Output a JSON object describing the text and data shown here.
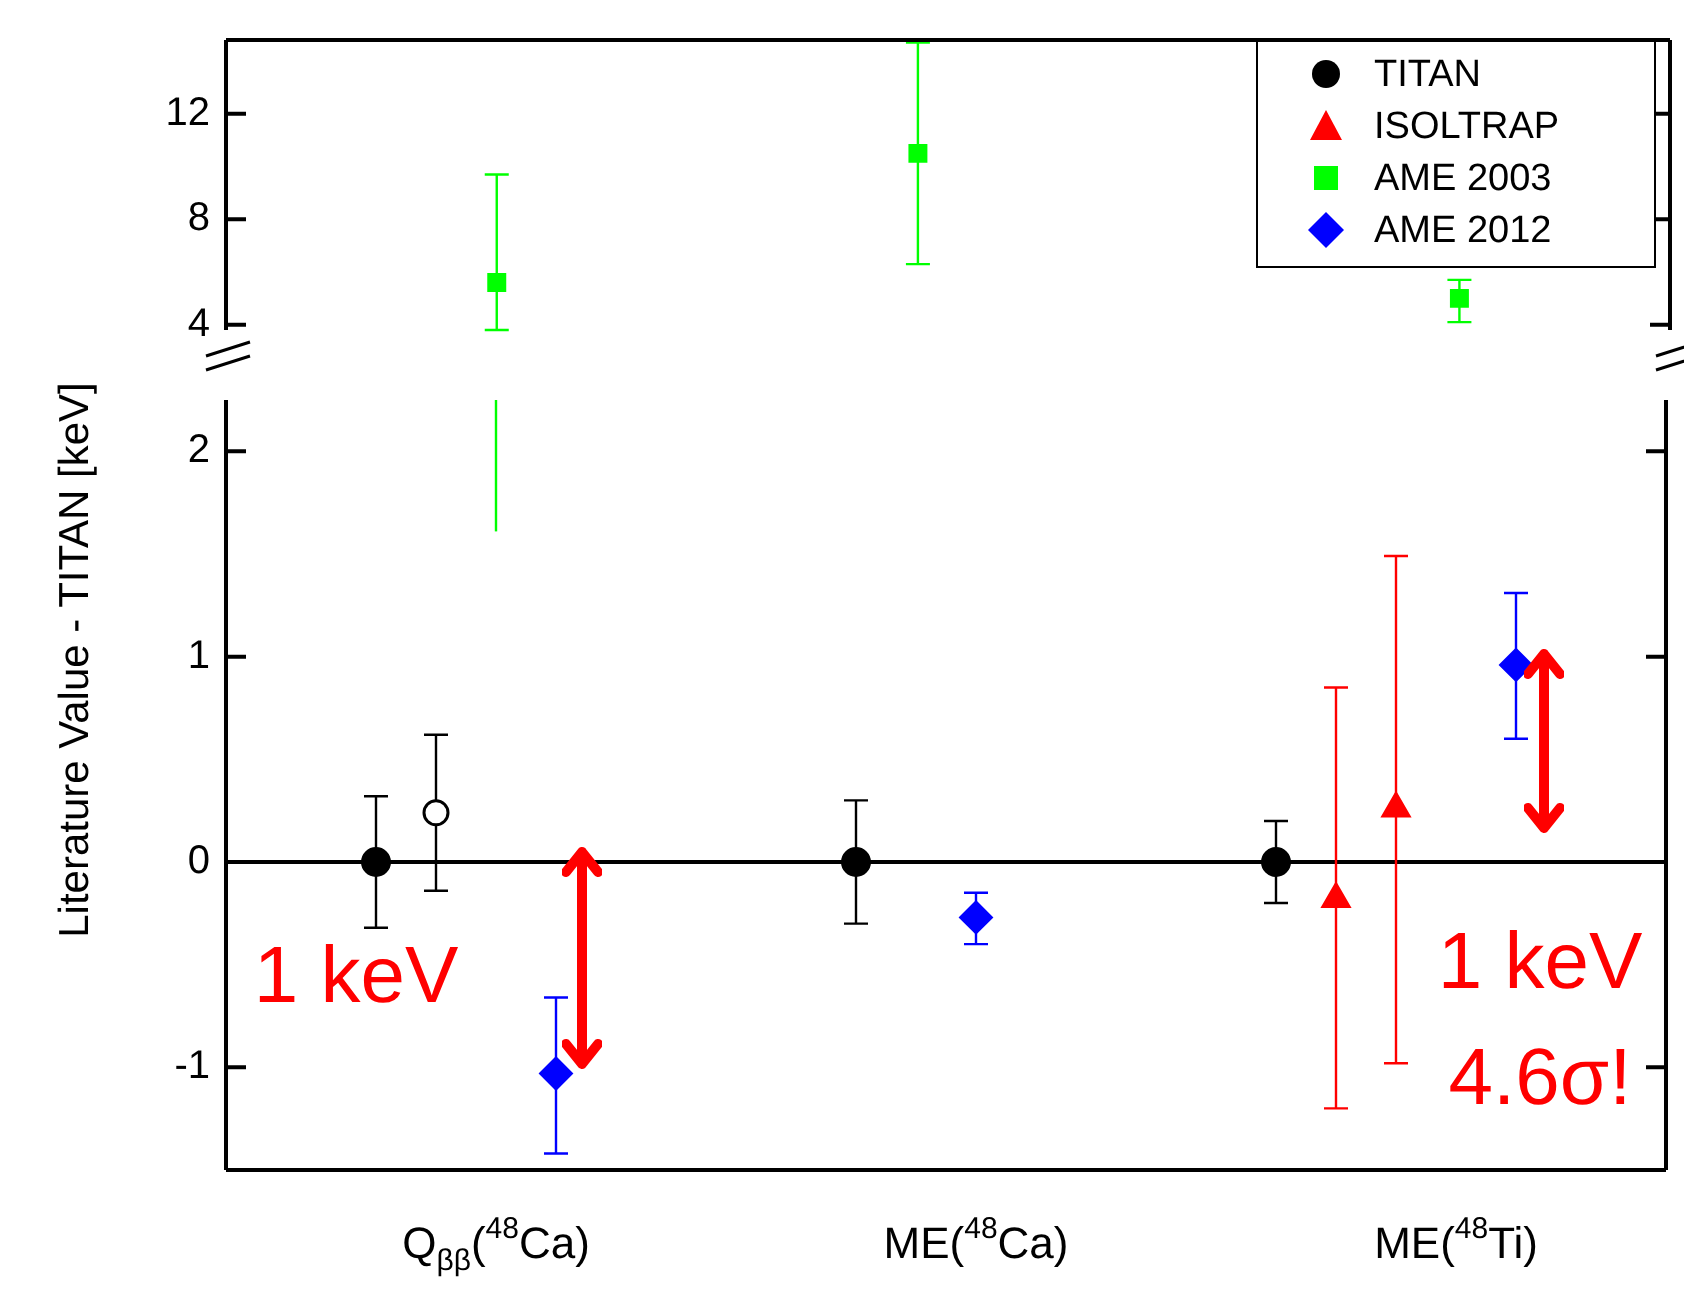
{
  "chart_data": [
    {
      "type": "scatter",
      "ylim": [
        3.8,
        14.8
      ],
      "yticks": [
        4,
        8,
        12
      ],
      "tick_labels": "y",
      "legend": "top right",
      "series": [
        {
          "name": "AME 2003",
          "color": "#00ff00",
          "marker": "square",
          "values": [
            null,
            null,
            null,
            null,
            5.6,
            null,
            null,
            null,
            null,
            null,
            null,
            10.5,
            null,
            null,
            null,
            null,
            null,
            null,
            null,
            null,
            5.0,
            null,
            null,
            null
          ],
          "errors": [
            null,
            null,
            null,
            null,
            [
              3.8,
              9.7
            ],
            null,
            null,
            null,
            null,
            null,
            null,
            [
              6.3,
              14.7
            ],
            null,
            null,
            null,
            null,
            null,
            null,
            null,
            null,
            [
              4.1,
              5.7
            ],
            null,
            null,
            null
          ]
        }
      ]
    },
    {
      "type": "scatter",
      "legend": "top right",
      "ylabel": "Literature Value - TITAN [keV]",
      "categories": [
        null,
        null,
        null,
        null,
        "Q$_{ββ}$($^{48}$Ca)",
        null,
        null,
        null,
        null,
        null,
        null,
        null,
        "ME($^{48}$Ca)",
        null,
        null,
        null,
        null,
        null,
        null,
        null,
        "ME($^{48}$Ti)",
        null,
        null,
        null
      ],
      "ylim": [
        -1.5,
        2.25
      ],
      "yticks": [
        -1,
        0,
        1,
        2
      ],
      "ref_lines": [
        {
          "axis": "y",
          "value": 0,
          "color": "#000000"
        }
      ],
      "annotations": [
        "1 keV",
        "1 keV",
        "4.6σ!"
      ],
      "series": [
        {
          "name": "TITAN",
          "color": "#000000",
          "marker": "circle",
          "values": [
            null,
            null,
            0,
            null,
            null,
            null,
            null,
            null,
            null,
            null,
            0,
            null,
            null,
            null,
            null,
            null,
            null,
            0,
            null,
            null,
            null,
            null,
            null,
            null
          ],
          "errors": [
            null,
            null,
            0.32,
            null,
            null,
            null,
            null,
            null,
            null,
            null,
            0.3,
            null,
            null,
            null,
            null,
            null,
            null,
            0.2,
            null,
            null,
            null,
            null,
            null,
            null
          ]
        },
        {
          "color": "#ffffff",
          "marker": "circle",
          "values": [
            null,
            null,
            null,
            0.24,
            null,
            null,
            null,
            null,
            null,
            null,
            null,
            null,
            null,
            null,
            null,
            null,
            null,
            null,
            null,
            null,
            null,
            null,
            null,
            null
          ],
          "errors": [
            null,
            null,
            null,
            [
              -0.14,
              0.62
            ],
            null,
            null,
            null,
            null,
            null,
            null,
            null,
            null,
            null,
            null,
            null,
            null,
            null,
            null,
            null,
            null,
            null,
            null,
            null,
            null
          ]
        },
        {
          "name": "ISOLTRAP",
          "color": "#ff0000",
          "marker": "triangle",
          "values": [
            null,
            null,
            null,
            null,
            null,
            null,
            null,
            null,
            null,
            null,
            null,
            null,
            null,
            null,
            null,
            null,
            null,
            null,
            -0.18,
            0.26,
            null,
            null,
            null,
            null
          ],
          "errors": [
            null,
            null,
            null,
            null,
            null,
            null,
            null,
            null,
            null,
            null,
            null,
            null,
            null,
            null,
            null,
            null,
            null,
            null,
            [
              -1.2,
              0.85
            ],
            [
              -0.98,
              1.49
            ],
            null,
            null,
            null,
            null
          ]
        },
        {
          "name": "AME 2012",
          "color": "#0000ff",
          "marker": "diamond",
          "values": [
            null,
            null,
            null,
            null,
            null,
            -1.03,
            null,
            null,
            null,
            null,
            null,
            null,
            -0.27,
            null,
            null,
            null,
            null,
            null,
            null,
            null,
            null,
            0.96,
            null,
            null
          ],
          "errors": [
            null,
            null,
            null,
            null,
            null,
            [
              -1.42,
              -0.66
            ],
            null,
            null,
            null,
            null,
            null,
            null,
            [
              -0.4,
              -0.15
            ],
            null,
            null,
            null,
            null,
            null,
            null,
            null,
            null,
            [
              0.6,
              1.31
            ],
            null,
            null
          ]
        },
        {
          "type": "line",
          "color": "#00ff00",
          "marker": "none",
          "x": [
            "Q$_{ββ}$($^{48}$Ca)",
            "Q$_{ββ}$($^{48}$Ca)"
          ],
          "values": [
            1.61,
            2.25
          ]
        }
      ]
    }
  ]
}
